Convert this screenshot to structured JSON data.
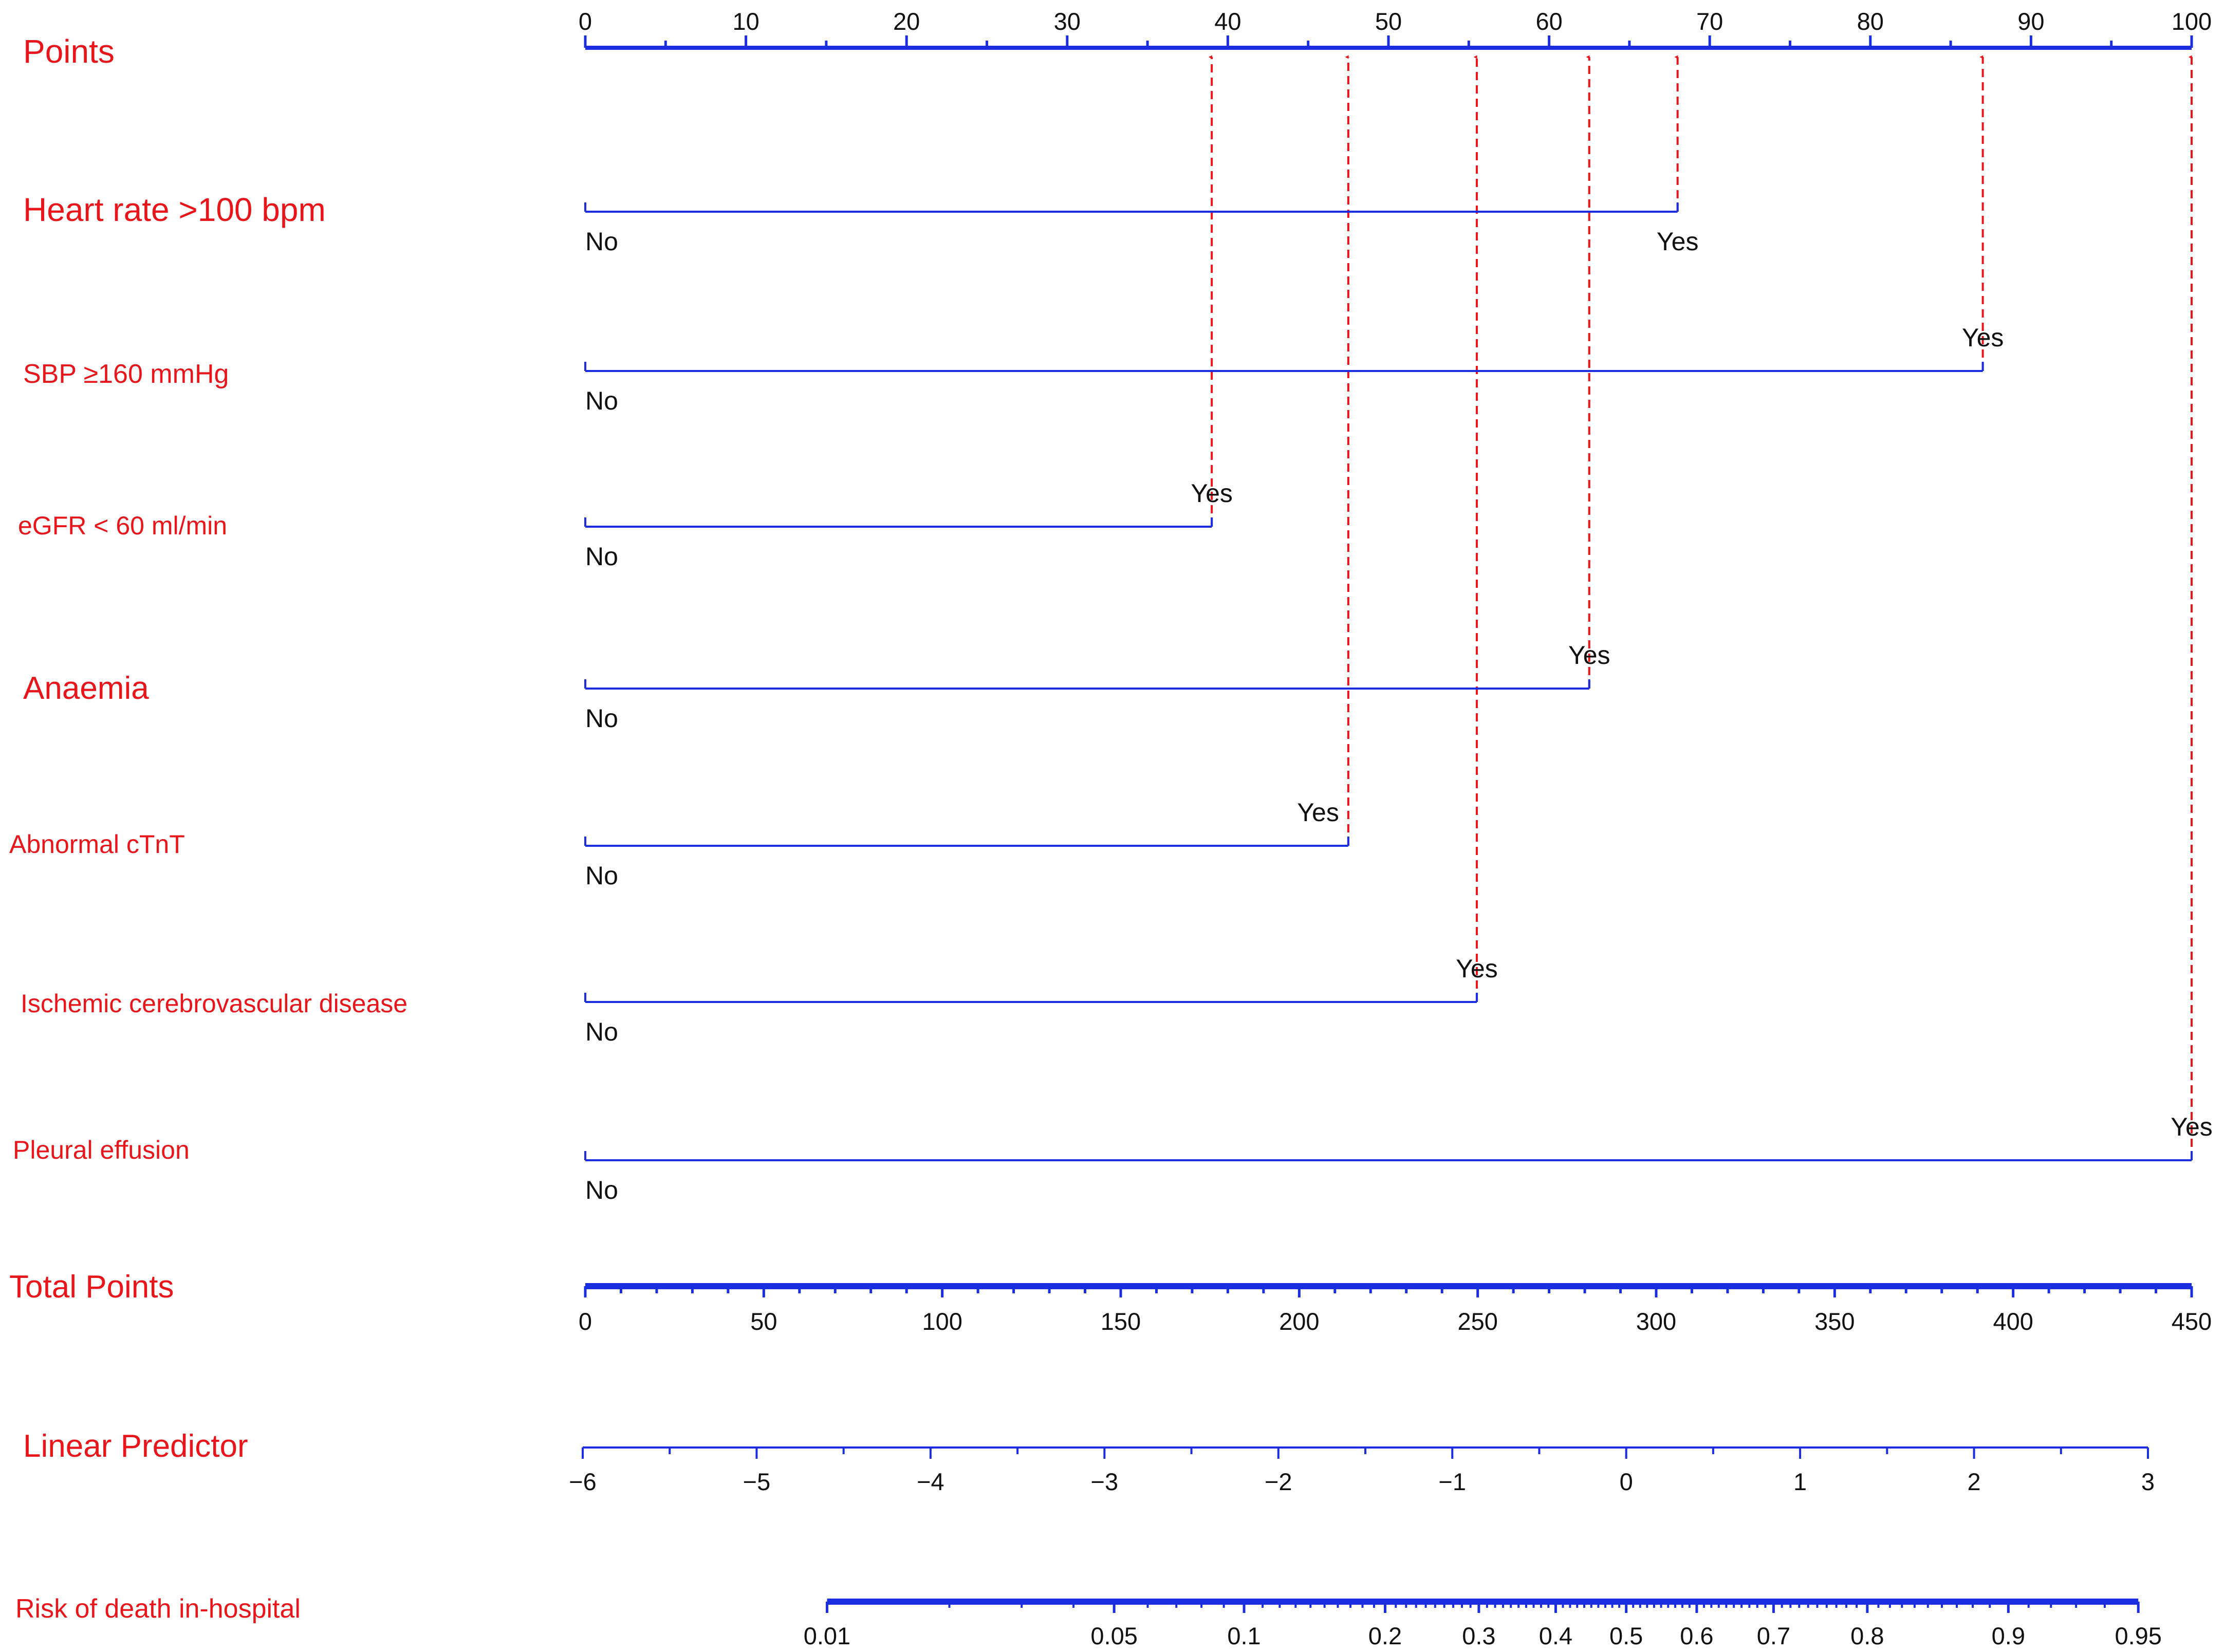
{
  "chart_data": {
    "type": "nomogram",
    "colors": {
      "label": "#e8161b",
      "axis": "#1a2ee0",
      "arrow": "#e8161b",
      "text": "#111111"
    },
    "points_axis": {
      "label": "Points",
      "range": [
        0,
        100
      ],
      "ticks": [
        0,
        10,
        20,
        30,
        40,
        50,
        60,
        70,
        80,
        90,
        100
      ],
      "tick_labels": [
        "0",
        "10",
        "20",
        "30",
        "40",
        "50",
        "60",
        "70",
        "80",
        "90",
        "100"
      ]
    },
    "predictors": [
      {
        "label": "Heart rate >100 bpm",
        "no_label": "No",
        "yes_label": "Yes",
        "yes_points": 68
      },
      {
        "label": "SBP ≥160 mmHg",
        "no_label": "No",
        "yes_label": "Yes",
        "yes_points": 87
      },
      {
        "label": "eGFR < 60 ml/min",
        "no_label": "No",
        "yes_label": "Yes",
        "yes_points": 39
      },
      {
        "label": "Anaemia",
        "no_label": "No",
        "yes_label": "Yes",
        "yes_points": 62.5
      },
      {
        "label": "Abnormal cTnT",
        "no_label": "No",
        "yes_label": "Yes",
        "yes_points": 47.5
      },
      {
        "label": "Ischemic cerebrovascular disease",
        "no_label": "No",
        "yes_label": "Yes",
        "yes_points": 55.5
      },
      {
        "label": "Pleural effusion",
        "no_label": "No",
        "yes_label": "Yes",
        "yes_points": 100
      }
    ],
    "total_points_axis": {
      "label": "Total Points",
      "range": [
        0,
        450
      ],
      "ticks": [
        0,
        50,
        100,
        150,
        200,
        250,
        300,
        350,
        400,
        450
      ],
      "tick_labels": [
        "0",
        "50",
        "100",
        "150",
        "200",
        "250",
        "300",
        "350",
        "400",
        "450"
      ]
    },
    "linear_predictor_axis": {
      "label": "Linear Predictor",
      "range": [
        -6,
        3
      ],
      "ticks": [
        -6,
        -5,
        -4,
        -3,
        -2,
        -1,
        0,
        1,
        2,
        3
      ],
      "tick_labels": [
        "−6",
        "−5",
        "−4",
        "−3",
        "−2",
        "−1",
        "0",
        "1",
        "2",
        "3"
      ]
    },
    "risk_axis": {
      "label": "Risk of death in-hospital",
      "ticks": [
        0.01,
        0.05,
        0.1,
        0.2,
        0.3,
        0.4,
        0.5,
        0.6,
        0.7,
        0.8,
        0.9,
        0.95
      ],
      "tick_labels": [
        "0.01",
        "0.05",
        "0.1",
        "0.2",
        "0.3",
        "0.4",
        "0.5",
        "0.6",
        "0.7",
        "0.8",
        "0.9",
        "0.95"
      ]
    }
  }
}
